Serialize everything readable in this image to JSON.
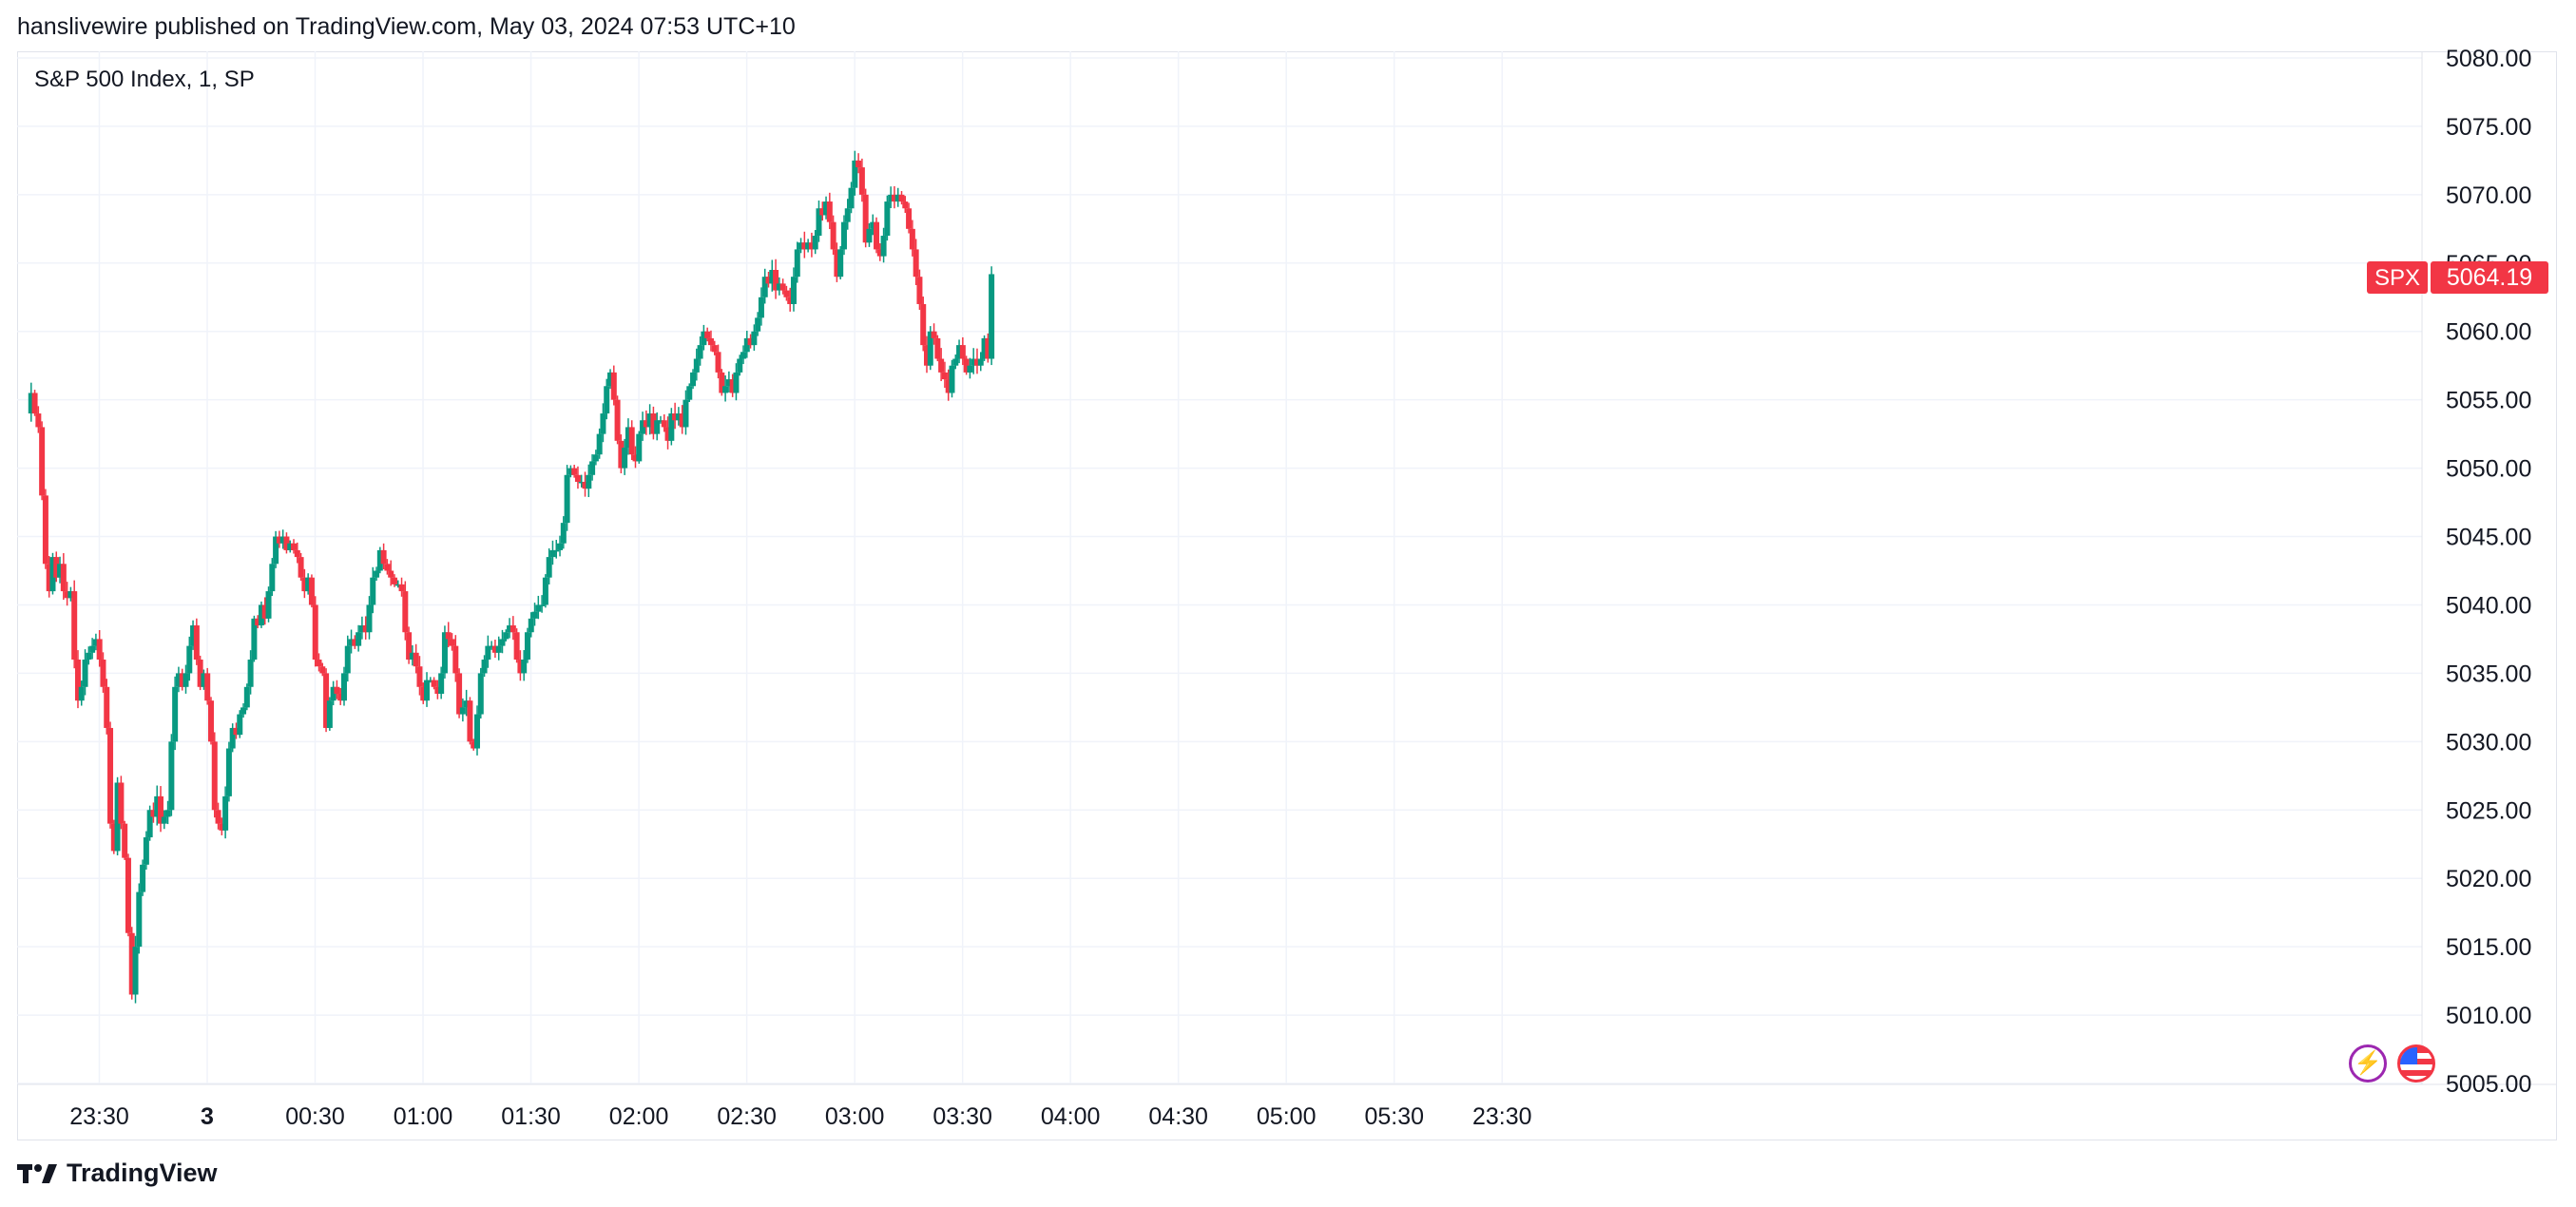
{
  "header": {
    "published_text": "hanslivewire published on TradingView.com, May 03, 2024 07:53 UTC+10"
  },
  "symbol": {
    "title": "S&P 500 Index, 1, SP"
  },
  "price_label": {
    "ticker": "SPX",
    "value": "5064.19",
    "color": "#f23645"
  },
  "footer": {
    "brand": "TradingView"
  },
  "icons": {
    "badge_1": "lightning-icon",
    "badge_2": "us-flag-icon"
  },
  "colors": {
    "up": "#089981",
    "down": "#f23645",
    "grid": "#f0f3fa"
  },
  "chart_data": {
    "type": "candlestick",
    "title": "S&P 500 Index, 1, SP",
    "interval": "1 minute",
    "ylim": [
      5005,
      5080
    ],
    "y_ticks": [
      "5080.00",
      "5075.00",
      "5070.00",
      "5065.00",
      "5060.00",
      "5055.00",
      "5050.00",
      "5045.00",
      "5040.00",
      "5035.00",
      "5030.00",
      "5025.00",
      "5020.00",
      "5015.00",
      "5010.00",
      "5005.00"
    ],
    "x_ticks": [
      {
        "label": "23:30",
        "minute": -30
      },
      {
        "label": "3",
        "minute": 0,
        "bold": true
      },
      {
        "label": "00:30",
        "minute": 30
      },
      {
        "label": "01:00",
        "minute": 60
      },
      {
        "label": "01:30",
        "minute": 90
      },
      {
        "label": "02:00",
        "minute": 120
      },
      {
        "label": "02:30",
        "minute": 150
      },
      {
        "label": "03:00",
        "minute": 180
      },
      {
        "label": "03:30",
        "minute": 210
      },
      {
        "label": "04:00",
        "minute": 240
      },
      {
        "label": "04:30",
        "minute": 270
      },
      {
        "label": "05:00",
        "minute": 300
      },
      {
        "label": "05:30",
        "minute": 330
      },
      {
        "label": "23:30",
        "minute": 360
      }
    ],
    "last_price": 5064.19,
    "path": [
      [
        0,
        5054
      ],
      [
        1,
        5055.5
      ],
      [
        2,
        5054
      ],
      [
        3,
        5053
      ],
      [
        4,
        5048
      ],
      [
        5,
        5043
      ],
      [
        6,
        5041
      ],
      [
        7,
        5043.5
      ],
      [
        8,
        5042
      ],
      [
        9,
        5043
      ],
      [
        10,
        5041
      ],
      [
        11,
        5040.5
      ],
      [
        12,
        5041
      ],
      [
        13,
        5036
      ],
      [
        14,
        5033
      ],
      [
        15,
        5034
      ],
      [
        16,
        5036
      ],
      [
        17,
        5036.5
      ],
      [
        18,
        5037
      ],
      [
        19,
        5037.5
      ],
      [
        20,
        5036
      ],
      [
        21,
        5034
      ],
      [
        22,
        5031
      ],
      [
        23,
        5024
      ],
      [
        24,
        5022
      ],
      [
        25,
        5027
      ],
      [
        26,
        5024
      ],
      [
        27,
        5021.5
      ],
      [
        28,
        5016
      ],
      [
        29,
        5011.5
      ],
      [
        30,
        5015
      ],
      [
        31,
        5019
      ],
      [
        32,
        5021
      ],
      [
        33,
        5023
      ],
      [
        34,
        5025
      ],
      [
        35,
        5024.5
      ],
      [
        36,
        5026
      ],
      [
        37,
        5024
      ],
      [
        38,
        5024.5
      ],
      [
        39,
        5025
      ],
      [
        40,
        5030
      ],
      [
        41,
        5034
      ],
      [
        42,
        5035
      ],
      [
        43,
        5034
      ],
      [
        44,
        5035
      ],
      [
        45,
        5037
      ],
      [
        46,
        5038.5
      ],
      [
        47,
        5036
      ],
      [
        48,
        5034
      ],
      [
        49,
        5035
      ],
      [
        50,
        5033
      ],
      [
        51,
        5030
      ],
      [
        52,
        5025
      ],
      [
        53,
        5024
      ],
      [
        54,
        5023.5
      ],
      [
        55,
        5026
      ],
      [
        56,
        5029.5
      ],
      [
        57,
        5031
      ],
      [
        58,
        5030.5
      ],
      [
        59,
        5032
      ],
      [
        60,
        5032.5
      ],
      [
        61,
        5034
      ],
      [
        62,
        5036
      ],
      [
        63,
        5039
      ],
      [
        64,
        5038.5
      ],
      [
        65,
        5040
      ],
      [
        66,
        5039
      ],
      [
        67,
        5041
      ],
      [
        68,
        5043
      ],
      [
        69,
        5045
      ],
      [
        70,
        5044.5
      ],
      [
        71,
        5045
      ],
      [
        72,
        5044
      ],
      [
        73,
        5044.5
      ],
      [
        74,
        5044
      ],
      [
        75,
        5043.5
      ],
      [
        76,
        5042
      ],
      [
        77,
        5041
      ],
      [
        78,
        5042
      ],
      [
        79,
        5040
      ],
      [
        80,
        5036
      ],
      [
        81,
        5035.5
      ],
      [
        82,
        5035
      ],
      [
        83,
        5031
      ],
      [
        84,
        5033
      ],
      [
        85,
        5034
      ],
      [
        86,
        5033.5
      ],
      [
        87,
        5033
      ],
      [
        88,
        5035
      ],
      [
        89,
        5037
      ],
      [
        90,
        5037.5
      ],
      [
        91,
        5037
      ],
      [
        92,
        5038
      ],
      [
        93,
        5038.5
      ],
      [
        94,
        5038
      ],
      [
        95,
        5040
      ],
      [
        96,
        5042
      ],
      [
        97,
        5042.5
      ],
      [
        98,
        5044
      ],
      [
        99,
        5043
      ],
      [
        100,
        5042.5
      ],
      [
        101,
        5042
      ],
      [
        102,
        5041.5
      ],
      [
        103,
        5041.5
      ],
      [
        104,
        5041
      ],
      [
        105,
        5038
      ],
      [
        106,
        5036
      ],
      [
        107,
        5036.5
      ],
      [
        108,
        5035.5
      ],
      [
        109,
        5034
      ],
      [
        110,
        5033
      ],
      [
        111,
        5034.5
      ],
      [
        112,
        5034.5
      ],
      [
        113,
        5034
      ],
      [
        114,
        5033.5
      ],
      [
        115,
        5035
      ],
      [
        116,
        5038
      ],
      [
        117,
        5037.5
      ],
      [
        118,
        5037
      ],
      [
        119,
        5035
      ],
      [
        120,
        5032
      ],
      [
        121,
        5032.5
      ],
      [
        122,
        5033
      ],
      [
        123,
        5030
      ],
      [
        124,
        5029.5
      ],
      [
        125,
        5032
      ],
      [
        126,
        5035
      ],
      [
        127,
        5036
      ],
      [
        128,
        5037
      ],
      [
        129,
        5037
      ],
      [
        130,
        5036.5
      ],
      [
        131,
        5037
      ],
      [
        132,
        5037.5
      ],
      [
        133,
        5038
      ],
      [
        134,
        5038.5
      ],
      [
        135,
        5038
      ],
      [
        136,
        5036
      ],
      [
        137,
        5035
      ],
      [
        138,
        5036
      ],
      [
        139,
        5038
      ],
      [
        140,
        5039
      ],
      [
        141,
        5039.5
      ],
      [
        142,
        5040
      ],
      [
        143,
        5040
      ],
      [
        144,
        5042
      ],
      [
        145,
        5043.5
      ],
      [
        146,
        5044
      ],
      [
        147,
        5044
      ],
      [
        148,
        5044.5
      ],
      [
        149,
        5046
      ],
      [
        150,
        5049.5
      ],
      [
        151,
        5050
      ],
      [
        152,
        5049.5
      ],
      [
        153,
        5049
      ],
      [
        154,
        5049
      ],
      [
        155,
        5048.5
      ],
      [
        156,
        5049.5
      ],
      [
        157,
        5050.5
      ],
      [
        158,
        5051
      ],
      [
        159,
        5052.5
      ],
      [
        160,
        5054
      ],
      [
        161,
        5056
      ],
      [
        162,
        5057
      ],
      [
        163,
        5055
      ],
      [
        164,
        5052
      ],
      [
        165,
        5050
      ],
      [
        166,
        5051.5
      ],
      [
        167,
        5053
      ],
      [
        168,
        5051
      ],
      [
        169,
        5050.5
      ],
      [
        170,
        5052.5
      ],
      [
        171,
        5053.5
      ],
      [
        172,
        5053
      ],
      [
        173,
        5054
      ],
      [
        174,
        5052.5
      ],
      [
        175,
        5053.5
      ],
      [
        176,
        5053.5
      ],
      [
        177,
        5053
      ],
      [
        178,
        5052
      ],
      [
        179,
        5054
      ],
      [
        180,
        5053.5
      ],
      [
        181,
        5054
      ],
      [
        182,
        5053
      ],
      [
        183,
        5055
      ],
      [
        184,
        5056
      ],
      [
        185,
        5057
      ],
      [
        186,
        5058
      ],
      [
        187,
        5059
      ],
      [
        188,
        5060
      ],
      [
        189,
        5059.5
      ],
      [
        190,
        5059
      ],
      [
        191,
        5058.5
      ],
      [
        192,
        5057
      ],
      [
        193,
        5055.5
      ],
      [
        194,
        5056
      ],
      [
        195,
        5056.5
      ],
      [
        196,
        5055.5
      ],
      [
        197,
        5057
      ],
      [
        198,
        5058
      ],
      [
        199,
        5058.5
      ],
      [
        200,
        5059.5
      ],
      [
        201,
        5059
      ],
      [
        202,
        5060
      ],
      [
        203,
        5061
      ],
      [
        204,
        5062.5
      ],
      [
        205,
        5064
      ],
      [
        206,
        5063.5
      ],
      [
        207,
        5064.5
      ],
      [
        208,
        5063
      ],
      [
        209,
        5063.5
      ],
      [
        210,
        5063
      ],
      [
        211,
        5062.5
      ],
      [
        212,
        5062
      ],
      [
        213,
        5064
      ],
      [
        214,
        5066
      ],
      [
        215,
        5066.5
      ],
      [
        216,
        5066
      ],
      [
        217,
        5066.5
      ],
      [
        218,
        5066
      ],
      [
        219,
        5067
      ],
      [
        220,
        5069
      ],
      [
        221,
        5068.5
      ],
      [
        222,
        5069.5
      ],
      [
        223,
        5068
      ],
      [
        224,
        5066
      ],
      [
        225,
        5064
      ],
      [
        226,
        5066
      ],
      [
        227,
        5068
      ],
      [
        228,
        5069
      ],
      [
        229,
        5070.5
      ],
      [
        230,
        5072.5
      ],
      [
        231,
        5072
      ],
      [
        232,
        5070
      ],
      [
        233,
        5066.5
      ],
      [
        234,
        5067.5
      ],
      [
        235,
        5068
      ],
      [
        236,
        5066
      ],
      [
        237,
        5065.5
      ],
      [
        238,
        5067
      ],
      [
        239,
        5069.5
      ],
      [
        240,
        5070
      ],
      [
        241,
        5069.5
      ],
      [
        242,
        5070
      ],
      [
        243,
        5069.5
      ],
      [
        244,
        5069
      ],
      [
        245,
        5067.5
      ],
      [
        246,
        5066
      ],
      [
        247,
        5064
      ],
      [
        248,
        5062
      ],
      [
        249,
        5059
      ],
      [
        250,
        5057.5
      ],
      [
        251,
        5060
      ],
      [
        252,
        5059.5
      ],
      [
        253,
        5058
      ],
      [
        254,
        5057
      ],
      [
        255,
        5056.5
      ],
      [
        256,
        5055.5
      ],
      [
        257,
        5057.5
      ],
      [
        258,
        5058
      ],
      [
        259,
        5059
      ],
      [
        260,
        5058
      ],
      [
        261,
        5057
      ],
      [
        262,
        5057.5
      ],
      [
        263,
        5058
      ],
      [
        264,
        5057.5
      ],
      [
        265,
        5058
      ],
      [
        266,
        5059.5
      ],
      [
        267,
        5058
      ],
      [
        268,
        5064.19
      ]
    ]
  }
}
